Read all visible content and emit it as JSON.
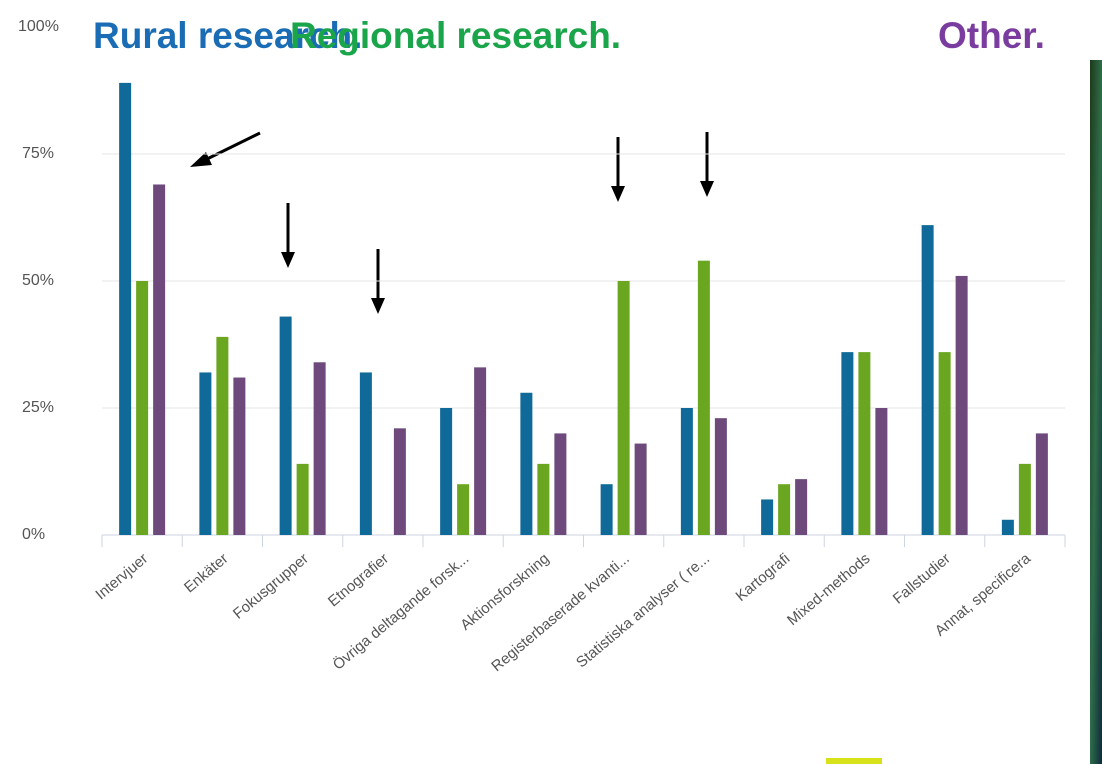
{
  "chart_data": {
    "type": "bar",
    "categories": [
      "Intervjuer",
      "Enkäter",
      "Fokusgrupper",
      "Etnografier",
      "Övriga deltagande forsk...",
      "Aktionsforskning",
      "Registerbaserade kvanti...",
      "Statistiska analyser ( re...",
      "Kartografi",
      "Mixed-methods",
      "Fallstudier",
      "Annat, specificera"
    ],
    "series": [
      {
        "name": "Rural research.",
        "color": "#106a99",
        "label_color": "#1a6db4",
        "values": [
          89,
          32,
          43,
          32,
          25,
          28,
          10,
          25,
          7,
          36,
          61,
          3
        ]
      },
      {
        "name": "Regional research.",
        "color": "#6aa620",
        "label_color": "#1aa54b",
        "values": [
          50,
          39,
          14,
          0,
          10,
          14,
          50,
          54,
          10,
          36,
          36,
          14
        ]
      },
      {
        "name": "Other.",
        "color": "#6e4a7c",
        "label_color": "#7b3c9f",
        "values": [
          69,
          31,
          34,
          21,
          33,
          20,
          18,
          23,
          11,
          25,
          51,
          20
        ]
      }
    ],
    "ylim": [
      0,
      100
    ],
    "yticks": [
      {
        "value": 0,
        "label": "0%"
      },
      {
        "value": 25,
        "label": "25%"
      },
      {
        "value": 50,
        "label": "50%"
      },
      {
        "value": 75,
        "label": "75%"
      },
      {
        "value": 100,
        "label": "100%"
      }
    ],
    "grid": true
  }
}
